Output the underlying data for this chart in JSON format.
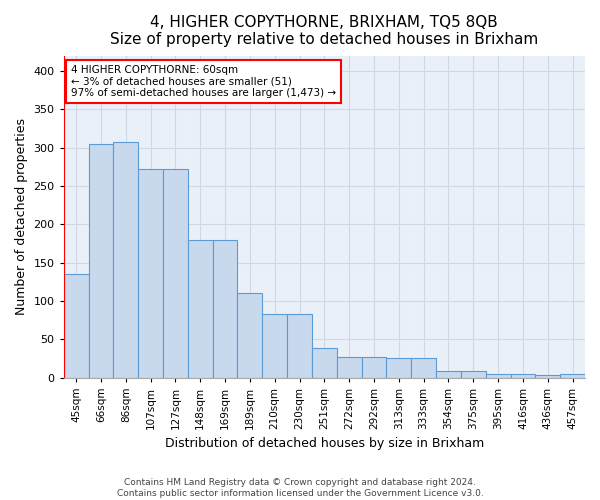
{
  "title": "4, HIGHER COPYTHORNE, BRIXHAM, TQ5 8QB",
  "subtitle": "Size of property relative to detached houses in Brixham",
  "xlabel": "Distribution of detached houses by size in Brixham",
  "ylabel": "Number of detached properties",
  "categories": [
    "45sqm",
    "66sqm",
    "86sqm",
    "107sqm",
    "127sqm",
    "148sqm",
    "169sqm",
    "189sqm",
    "210sqm",
    "230sqm",
    "251sqm",
    "272sqm",
    "292sqm",
    "313sqm",
    "333sqm",
    "354sqm",
    "375sqm",
    "395sqm",
    "416sqm",
    "436sqm",
    "457sqm"
  ],
  "values": [
    135,
    305,
    307,
    272,
    272,
    180,
    180,
    110,
    83,
    83,
    38,
    27,
    27,
    25,
    25,
    9,
    9,
    5,
    5,
    3,
    5
  ],
  "bar_color": "#c8d9ee",
  "bar_edge_color": "#5b9bd5",
  "grid_color": "#d0d8e8",
  "bg_color": "#eaf0f8",
  "annotation_text": "4 HIGHER COPYTHORNE: 60sqm\n← 3% of detached houses are smaller (51)\n97% of semi-detached houses are larger (1,473) →",
  "annotation_box_color": "white",
  "annotation_box_edge": "red",
  "vline_color": "red",
  "ylim": [
    0,
    420
  ],
  "yticks": [
    0,
    50,
    100,
    150,
    200,
    250,
    300,
    350,
    400
  ],
  "footer_line1": "Contains HM Land Registry data © Crown copyright and database right 2024.",
  "footer_line2": "Contains public sector information licensed under the Government Licence v3.0.",
  "title_fontsize": 11,
  "subtitle_fontsize": 10,
  "xlabel_fontsize": 9,
  "ylabel_fontsize": 9
}
